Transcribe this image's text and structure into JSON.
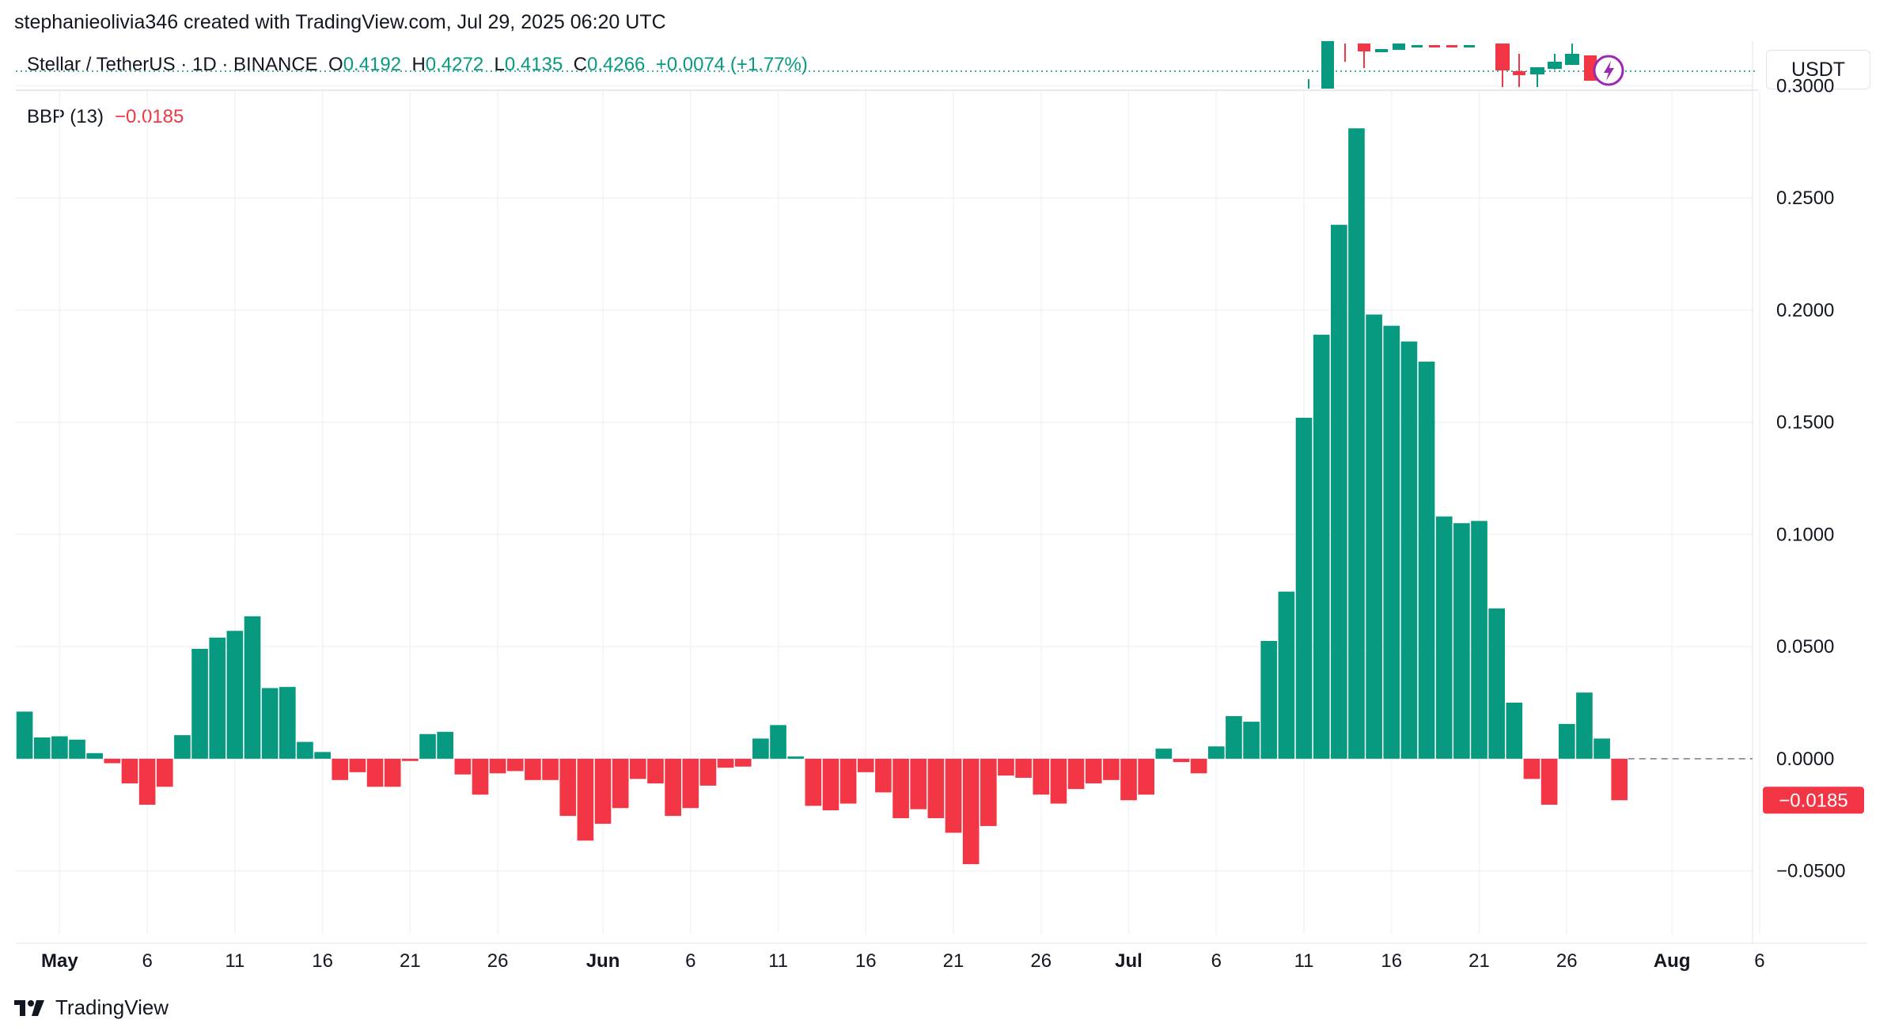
{
  "header": {
    "attribution": "stephanieolivia346 created with TradingView.com, Jul 29, 2025 06:20 UTC",
    "symbol": "Stellar / TetherUS · 1D · BINANCE",
    "open_label": "O",
    "open": "0.4192",
    "high_label": "H",
    "high": "0.4272",
    "low_label": "L",
    "low": "0.4135",
    "close_label": "C",
    "close": "0.4266",
    "change": "+0.0074 (+1.77%)",
    "currency": "USDT"
  },
  "indicator": {
    "name": "BBP (13)",
    "value": "−0.0185"
  },
  "brand": {
    "name": "TradingView"
  },
  "colors": {
    "positive": "#089981",
    "negative": "#f23645",
    "grid": "#f0f3fa",
    "text": "#131722"
  },
  "chart_data": {
    "type": "bar",
    "title": "BBP (13)",
    "xlabel": "",
    "ylabel": "",
    "ylim": [
      -0.078,
      0.298
    ],
    "y_ticks": [
      "0.3000",
      "0.2500",
      "0.2000",
      "0.1500",
      "0.1000",
      "0.0500",
      "0.0000",
      "−0.0500"
    ],
    "y_tick_values": [
      0.3,
      0.25,
      0.2,
      0.15,
      0.1,
      0.05,
      0.0,
      -0.05
    ],
    "x_ticks": [
      "May",
      "6",
      "11",
      "16",
      "21",
      "26",
      "Jun",
      "6",
      "11",
      "16",
      "21",
      "26",
      "Jul",
      "6",
      "11",
      "16",
      "21",
      "26",
      "Aug",
      "6"
    ],
    "x_tick_days": [
      1,
      6,
      11,
      16,
      21,
      26,
      32,
      37,
      42,
      47,
      52,
      57,
      62,
      67,
      72,
      77,
      82,
      87,
      93,
      98
    ],
    "first_bar_day": -1,
    "last_value_label": "−0.0185",
    "values": [
      0.021,
      0.0095,
      0.01,
      0.0085,
      0.0025,
      -0.002,
      -0.011,
      -0.0205,
      -0.0125,
      0.0105,
      0.049,
      0.054,
      0.057,
      0.0635,
      0.0315,
      0.032,
      0.0075,
      0.003,
      -0.0095,
      -0.006,
      -0.0125,
      -0.0125,
      -0.001,
      0.011,
      0.012,
      -0.007,
      -0.016,
      -0.0065,
      -0.0055,
      -0.0095,
      -0.0095,
      -0.0255,
      -0.0365,
      -0.029,
      -0.022,
      -0.009,
      -0.011,
      -0.0255,
      -0.022,
      -0.012,
      -0.004,
      -0.0035,
      0.009,
      0.015,
      0.001,
      -0.021,
      -0.023,
      -0.02,
      -0.006,
      -0.015,
      -0.0265,
      -0.0225,
      -0.0265,
      -0.033,
      -0.047,
      -0.03,
      -0.0075,
      -0.0085,
      -0.016,
      -0.02,
      -0.0135,
      -0.011,
      -0.0095,
      -0.0185,
      -0.016,
      0.0045,
      -0.0015,
      -0.0065,
      0.0055,
      0.019,
      0.0165,
      0.0525,
      0.0745,
      0.152,
      0.189,
      0.238,
      0.281,
      0.198,
      0.193,
      0.186,
      0.177,
      0.108,
      0.105,
      0.106,
      0.067,
      0.025,
      -0.009,
      -0.0205,
      0.0155,
      0.0295,
      0.009,
      -0.0185
    ]
  }
}
